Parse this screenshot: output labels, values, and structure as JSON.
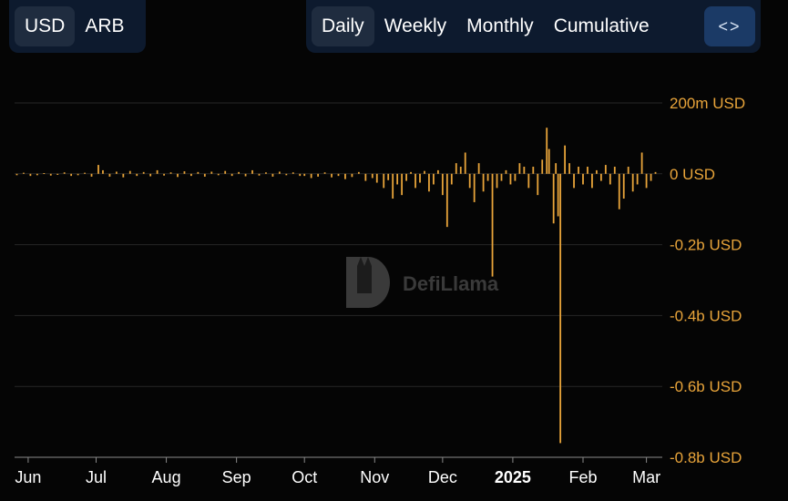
{
  "controls": {
    "currency": [
      {
        "label": "USD",
        "active": true
      },
      {
        "label": "ARB",
        "active": false
      }
    ],
    "period": [
      {
        "label": "Daily",
        "active": true
      },
      {
        "label": "Weekly",
        "active": false
      },
      {
        "label": "Monthly",
        "active": false
      },
      {
        "label": "Cumulative",
        "active": false
      }
    ],
    "embed_icon": "code-icon",
    "embed_symbol": "<>"
  },
  "watermark": {
    "text": "DefiLlama",
    "icon": "llama-logo-icon"
  },
  "colors": {
    "bar": "#e8a43a",
    "axis_text": "#e8a43a",
    "x_text": "#ffffff",
    "grid": "#262626",
    "background": "#050505"
  },
  "chart_data": {
    "type": "bar",
    "title": "",
    "xlabel": "",
    "ylabel": "",
    "ylim": [
      -0.8,
      0.2
    ],
    "y_unit": "b USD",
    "y_ticks": [
      {
        "value": 0.2,
        "label": "200m USD"
      },
      {
        "value": 0,
        "label": "0 USD"
      },
      {
        "value": -0.2,
        "label": "-0.2b USD"
      },
      {
        "value": -0.4,
        "label": "-0.4b USD"
      },
      {
        "value": -0.6,
        "label": "-0.6b USD"
      },
      {
        "value": -0.8,
        "label": "-0.8b USD"
      }
    ],
    "x_range": [
      "2024-05-26",
      "2025-03-08"
    ],
    "x_ticks": [
      {
        "date": "2024-06-01",
        "label": "Jun",
        "bold": false
      },
      {
        "date": "2024-07-01",
        "label": "Jul",
        "bold": false
      },
      {
        "date": "2024-08-01",
        "label": "Aug",
        "bold": false
      },
      {
        "date": "2024-09-01",
        "label": "Sep",
        "bold": false
      },
      {
        "date": "2024-10-01",
        "label": "Oct",
        "bold": false
      },
      {
        "date": "2024-11-01",
        "label": "Nov",
        "bold": false
      },
      {
        "date": "2024-12-01",
        "label": "Dec",
        "bold": false
      },
      {
        "date": "2025-01-01",
        "label": "2025",
        "bold": true
      },
      {
        "date": "2025-02-01",
        "label": "Feb",
        "bold": false
      },
      {
        "date": "2025-03-01",
        "label": "Mar",
        "bold": false
      }
    ],
    "grid": true,
    "legend": "none",
    "series": [
      {
        "unit": "b USD",
        "points": [
          [
            "2024-05-27",
            -0.004
          ],
          [
            "2024-05-30",
            0.003
          ],
          [
            "2024-06-02",
            -0.006
          ],
          [
            "2024-06-05",
            -0.004
          ],
          [
            "2024-06-08",
            0.002
          ],
          [
            "2024-06-11",
            -0.005
          ],
          [
            "2024-06-14",
            -0.003
          ],
          [
            "2024-06-17",
            0.004
          ],
          [
            "2024-06-20",
            -0.006
          ],
          [
            "2024-06-23",
            -0.004
          ],
          [
            "2024-06-26",
            0.003
          ],
          [
            "2024-06-29",
            -0.008
          ],
          [
            "2024-07-02",
            0.025
          ],
          [
            "2024-07-04",
            0.01
          ],
          [
            "2024-07-07",
            -0.008
          ],
          [
            "2024-07-10",
            0.006
          ],
          [
            "2024-07-13",
            -0.01
          ],
          [
            "2024-07-16",
            0.008
          ],
          [
            "2024-07-19",
            -0.006
          ],
          [
            "2024-07-22",
            0.005
          ],
          [
            "2024-07-25",
            -0.007
          ],
          [
            "2024-07-28",
            0.01
          ],
          [
            "2024-07-31",
            -0.005
          ],
          [
            "2024-08-03",
            0.004
          ],
          [
            "2024-08-06",
            -0.009
          ],
          [
            "2024-08-09",
            0.007
          ],
          [
            "2024-08-12",
            -0.006
          ],
          [
            "2024-08-15",
            0.005
          ],
          [
            "2024-08-18",
            -0.008
          ],
          [
            "2024-08-21",
            0.006
          ],
          [
            "2024-08-24",
            -0.004
          ],
          [
            "2024-08-27",
            0.008
          ],
          [
            "2024-08-30",
            -0.006
          ],
          [
            "2024-09-02",
            0.005
          ],
          [
            "2024-09-05",
            -0.007
          ],
          [
            "2024-09-08",
            0.01
          ],
          [
            "2024-09-11",
            -0.005
          ],
          [
            "2024-09-14",
            0.004
          ],
          [
            "2024-09-17",
            -0.008
          ],
          [
            "2024-09-20",
            0.006
          ],
          [
            "2024-09-23",
            -0.004
          ],
          [
            "2024-09-26",
            0.004
          ],
          [
            "2024-09-29",
            -0.006
          ],
          [
            "2024-10-01",
            -0.006
          ],
          [
            "2024-10-04",
            -0.012
          ],
          [
            "2024-10-07",
            -0.008
          ],
          [
            "2024-10-10",
            0.004
          ],
          [
            "2024-10-13",
            -0.01
          ],
          [
            "2024-10-16",
            -0.006
          ],
          [
            "2024-10-19",
            -0.015
          ],
          [
            "2024-10-22",
            -0.009
          ],
          [
            "2024-10-25",
            0.005
          ],
          [
            "2024-10-28",
            -0.02
          ],
          [
            "2024-10-31",
            -0.012
          ],
          [
            "2024-11-02",
            -0.025
          ],
          [
            "2024-11-05",
            -0.04
          ],
          [
            "2024-11-07",
            -0.018
          ],
          [
            "2024-11-09",
            -0.07
          ],
          [
            "2024-11-11",
            -0.03
          ],
          [
            "2024-11-13",
            -0.06
          ],
          [
            "2024-11-15",
            -0.02
          ],
          [
            "2024-11-17",
            0.005
          ],
          [
            "2024-11-19",
            -0.04
          ],
          [
            "2024-11-21",
            -0.025
          ],
          [
            "2024-11-23",
            0.008
          ],
          [
            "2024-11-25",
            -0.05
          ],
          [
            "2024-11-27",
            -0.03
          ],
          [
            "2024-11-29",
            0.01
          ],
          [
            "2024-12-01",
            -0.06
          ],
          [
            "2024-12-03",
            -0.15
          ],
          [
            "2024-12-05",
            -0.03
          ],
          [
            "2024-12-07",
            0.03
          ],
          [
            "2024-12-09",
            0.02
          ],
          [
            "2024-12-11",
            0.06
          ],
          [
            "2024-12-13",
            -0.04
          ],
          [
            "2024-12-15",
            -0.08
          ],
          [
            "2024-12-17",
            0.03
          ],
          [
            "2024-12-19",
            -0.05
          ],
          [
            "2024-12-21",
            -0.02
          ],
          [
            "2024-12-23",
            -0.29
          ],
          [
            "2024-12-25",
            -0.04
          ],
          [
            "2024-12-27",
            -0.02
          ],
          [
            "2024-12-29",
            0.01
          ],
          [
            "2024-12-31",
            -0.03
          ],
          [
            "2025-01-02",
            -0.02
          ],
          [
            "2025-01-04",
            0.03
          ],
          [
            "2025-01-06",
            0.02
          ],
          [
            "2025-01-08",
            -0.04
          ],
          [
            "2025-01-10",
            0.02
          ],
          [
            "2025-01-12",
            -0.06
          ],
          [
            "2025-01-14",
            0.04
          ],
          [
            "2025-01-16",
            0.13
          ],
          [
            "2025-01-17",
            0.07
          ],
          [
            "2025-01-19",
            -0.14
          ],
          [
            "2025-01-20",
            0.03
          ],
          [
            "2025-01-21",
            -0.12
          ],
          [
            "2025-01-22",
            -0.76
          ],
          [
            "2025-01-24",
            0.08
          ],
          [
            "2025-01-26",
            0.03
          ],
          [
            "2025-01-28",
            -0.04
          ],
          [
            "2025-01-30",
            0.02
          ],
          [
            "2025-02-01",
            -0.03
          ],
          [
            "2025-02-03",
            0.02
          ],
          [
            "2025-02-05",
            -0.04
          ],
          [
            "2025-02-07",
            0.01
          ],
          [
            "2025-02-09",
            -0.02
          ],
          [
            "2025-02-11",
            0.025
          ],
          [
            "2025-02-13",
            -0.03
          ],
          [
            "2025-02-15",
            0.02
          ],
          [
            "2025-02-17",
            -0.1
          ],
          [
            "2025-02-19",
            -0.07
          ],
          [
            "2025-02-21",
            0.02
          ],
          [
            "2025-02-23",
            -0.05
          ],
          [
            "2025-02-25",
            -0.03
          ],
          [
            "2025-02-27",
            0.06
          ],
          [
            "2025-03-01",
            -0.04
          ],
          [
            "2025-03-03",
            -0.02
          ],
          [
            "2025-03-05",
            0.005
          ]
        ]
      }
    ]
  }
}
